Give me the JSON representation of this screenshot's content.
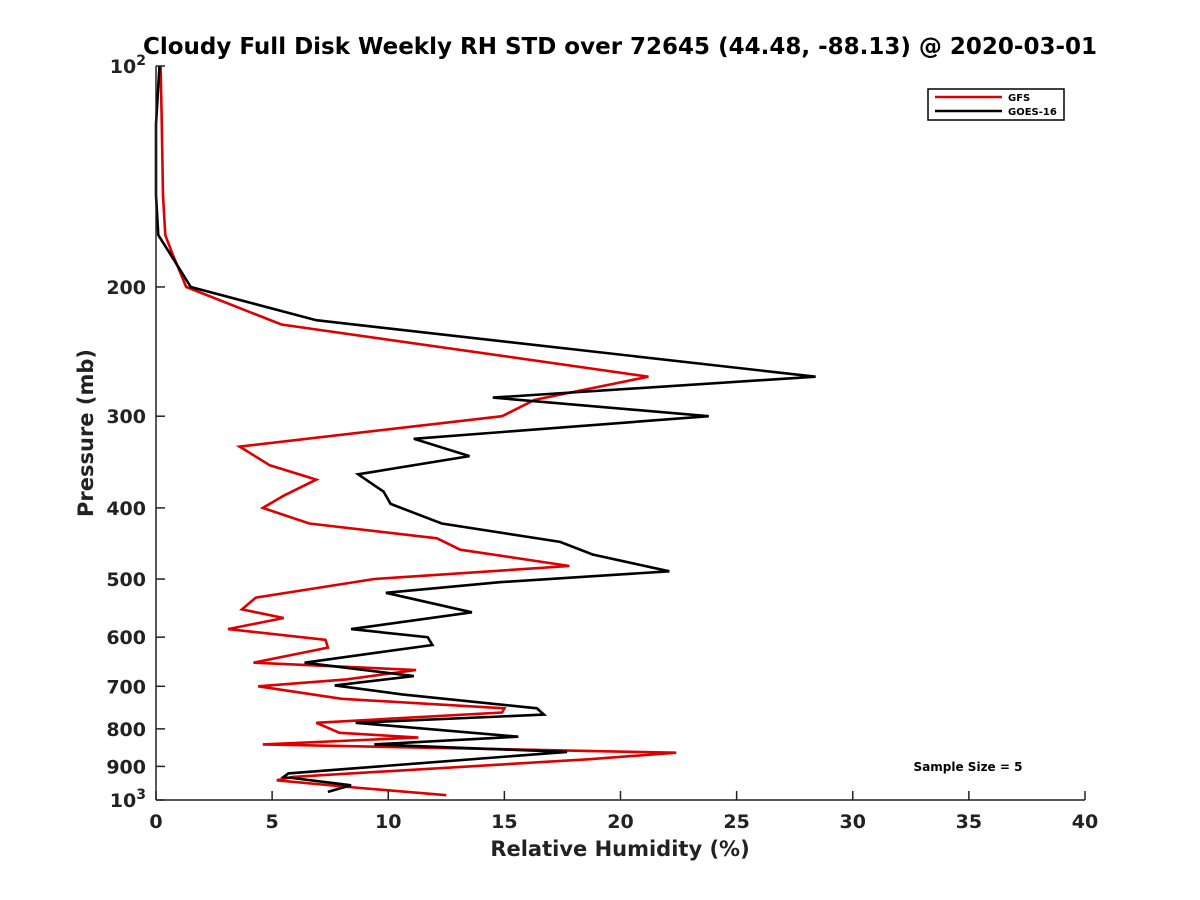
{
  "chart_data": {
    "type": "line",
    "orientation": "vertical-profile",
    "title": "Cloudy Full Disk Weekly RH STD over 72645 (44.48, -88.13) @ 2020-03-01",
    "xlabel": "Relative Humidity (%)",
    "ylabel": "Pressure (mb)",
    "xlim": [
      0,
      40
    ],
    "ylim": [
      100,
      1000
    ],
    "y_scale": "log",
    "y_reversed": true,
    "grid": false,
    "legend_position": "top-right",
    "x_ticks": [
      "0",
      "5",
      "10",
      "15",
      "20",
      "25",
      "30",
      "35",
      "40"
    ],
    "y_ticks": [
      {
        "value": 100,
        "label": "10",
        "sup": "2"
      },
      {
        "value": 200,
        "label": "200",
        "sup": ""
      },
      {
        "value": 300,
        "label": "300",
        "sup": ""
      },
      {
        "value": 400,
        "label": "400",
        "sup": ""
      },
      {
        "value": 500,
        "label": "500",
        "sup": ""
      },
      {
        "value": 600,
        "label": "600",
        "sup": ""
      },
      {
        "value": 700,
        "label": "700",
        "sup": ""
      },
      {
        "value": 800,
        "label": "800",
        "sup": ""
      },
      {
        "value": 900,
        "label": "900",
        "sup": ""
      },
      {
        "value": 1000,
        "label": "10",
        "sup": "3"
      }
    ],
    "annotation": "Sample Size = 5",
    "series": [
      {
        "name": "GFS",
        "color": "#dd0000",
        "points": [
          [
            0.2,
            100
          ],
          [
            0.25,
            120
          ],
          [
            0.3,
            150
          ],
          [
            0.4,
            170
          ],
          [
            0.7,
            180
          ],
          [
            1.3,
            200
          ],
          [
            5.4,
            225
          ],
          [
            21.2,
            265
          ],
          [
            16.3,
            285
          ],
          [
            14.9,
            300
          ],
          [
            3.6,
            330
          ],
          [
            4.9,
            350
          ],
          [
            6.9,
            366
          ],
          [
            5.5,
            385
          ],
          [
            4.6,
            400
          ],
          [
            6.6,
            420
          ],
          [
            12.1,
            440
          ],
          [
            13.1,
            456
          ],
          [
            17.8,
            480
          ],
          [
            9.4,
            500
          ],
          [
            4.3,
            530
          ],
          [
            3.7,
            550
          ],
          [
            5.5,
            565
          ],
          [
            3.1,
            585
          ],
          [
            7.3,
            605
          ],
          [
            7.4,
            620
          ],
          [
            4.2,
            650
          ],
          [
            11.2,
            665
          ],
          [
            8.2,
            685
          ],
          [
            4.4,
            700
          ],
          [
            8.0,
            728
          ],
          [
            15.0,
            750
          ],
          [
            14.9,
            760
          ],
          [
            6.9,
            785
          ],
          [
            7.9,
            810
          ],
          [
            11.3,
            822
          ],
          [
            4.6,
            840
          ],
          [
            22.4,
            862
          ],
          [
            18.6,
            880
          ],
          [
            5.9,
            930
          ],
          [
            5.2,
            940
          ],
          [
            8.3,
            960
          ],
          [
            12.5,
            985
          ]
        ]
      },
      {
        "name": "GOES-16",
        "color": "#000000",
        "points": [
          [
            0.15,
            100
          ],
          [
            0.0,
            120
          ],
          [
            0.0,
            150
          ],
          [
            0.1,
            170
          ],
          [
            0.6,
            180
          ],
          [
            1.5,
            200
          ],
          [
            6.9,
            222
          ],
          [
            28.4,
            265
          ],
          [
            14.5,
            283
          ],
          [
            23.8,
            300
          ],
          [
            11.1,
            322
          ],
          [
            13.5,
            340
          ],
          [
            8.7,
            360
          ],
          [
            9.8,
            380
          ],
          [
            10.1,
            395
          ],
          [
            12.3,
            420
          ],
          [
            17.4,
            445
          ],
          [
            18.8,
            463
          ],
          [
            22.1,
            488
          ],
          [
            14.8,
            505
          ],
          [
            9.9,
            522
          ],
          [
            13.6,
            555
          ],
          [
            8.4,
            585
          ],
          [
            11.7,
            600
          ],
          [
            11.9,
            615
          ],
          [
            6.4,
            650
          ],
          [
            11.1,
            678
          ],
          [
            7.7,
            698
          ],
          [
            10.6,
            718
          ],
          [
            16.4,
            750
          ],
          [
            16.7,
            765
          ],
          [
            8.6,
            785
          ],
          [
            15.6,
            820
          ],
          [
            9.4,
            840
          ],
          [
            17.7,
            860
          ],
          [
            5.7,
            920
          ],
          [
            5.5,
            930
          ],
          [
            8.4,
            955
          ],
          [
            7.4,
            975
          ]
        ]
      }
    ]
  }
}
